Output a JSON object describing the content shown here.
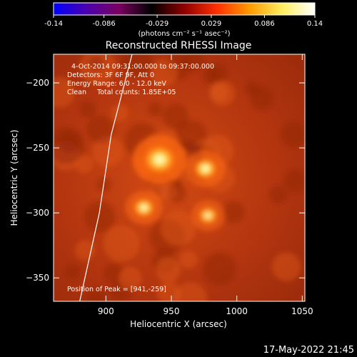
{
  "colorbar": {
    "tick_labels": [
      "-0.14",
      "-0.086",
      "-0.029",
      "0.029",
      "0.086",
      "0.14"
    ],
    "tick_values": [
      -0.14,
      -0.086,
      -0.029,
      0.029,
      0.086,
      0.14
    ],
    "range": [
      -0.14,
      0.14
    ],
    "unit_label": "(photons cm⁻² s⁻¹ asec⁻²)",
    "colormap": "rhessi-red-temperature",
    "colors": [
      "#0000ff",
      "#4b00b0",
      "#7a0060",
      "#000000",
      "#8f0000",
      "#ff3000",
      "#ff9a00",
      "#ffee60",
      "#ffffff"
    ]
  },
  "chart_data": {
    "type": "heatmap",
    "title": "Reconstructed RHESSI Image",
    "xlabel": "Heliocentric X (arcsec)",
    "ylabel": "Heliocentric Y (arcsec)",
    "xlim": [
      860,
      1052
    ],
    "ylim": [
      -368,
      -178
    ],
    "x_ticks": [
      900,
      950,
      1000,
      1050
    ],
    "y_ticks": [
      -200,
      -250,
      -300,
      -350
    ],
    "x_tick_labels": [
      "900",
      "950",
      "1000",
      "1050"
    ],
    "y_tick_labels": [
      "−200",
      "−250",
      "−300",
      "−350"
    ],
    "grid": false,
    "annotations": [
      "4-Oct-2014 09:31:00.000 to 09:37:00.000",
      "Detectors: 3F 6F 9F, Att 0",
      "Energy Range: 6.0 - 12.0 keV",
      "Clean     Total counts: 1.85E+05"
    ],
    "peak_label": "Position of Peak = [941,-259]",
    "peak": [
      941,
      -259
    ],
    "sources": [
      {
        "x": 941,
        "y": -259,
        "intensity": 0.14
      },
      {
        "x": 976,
        "y": -266,
        "intensity": 0.095
      },
      {
        "x": 929,
        "y": -296,
        "intensity": 0.085
      },
      {
        "x": 978,
        "y": -302,
        "intensity": 0.075
      }
    ],
    "limb_curve": [
      [
        920,
        -178
      ],
      [
        904,
        -240
      ],
      [
        895,
        -300
      ],
      [
        880,
        -368
      ]
    ]
  },
  "timestamp": "17-May-2022 21:45"
}
